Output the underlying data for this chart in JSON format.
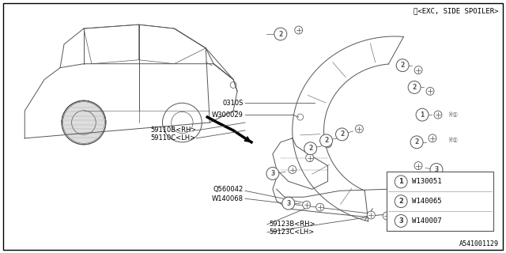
{
  "bg_color": "#ffffff",
  "border_color": "#000000",
  "title_note": "※<EXC, SIDE SPOILER>",
  "diagram_id": "A541001129",
  "legend": [
    {
      "num": "1",
      "code": "W130051"
    },
    {
      "num": "2",
      "code": "W140065"
    },
    {
      "num": "3",
      "code": "W140007"
    }
  ],
  "line_color": "#555555",
  "text_color": "#000000",
  "font_size_small": 6.0,
  "font_size_legend": 6.5
}
